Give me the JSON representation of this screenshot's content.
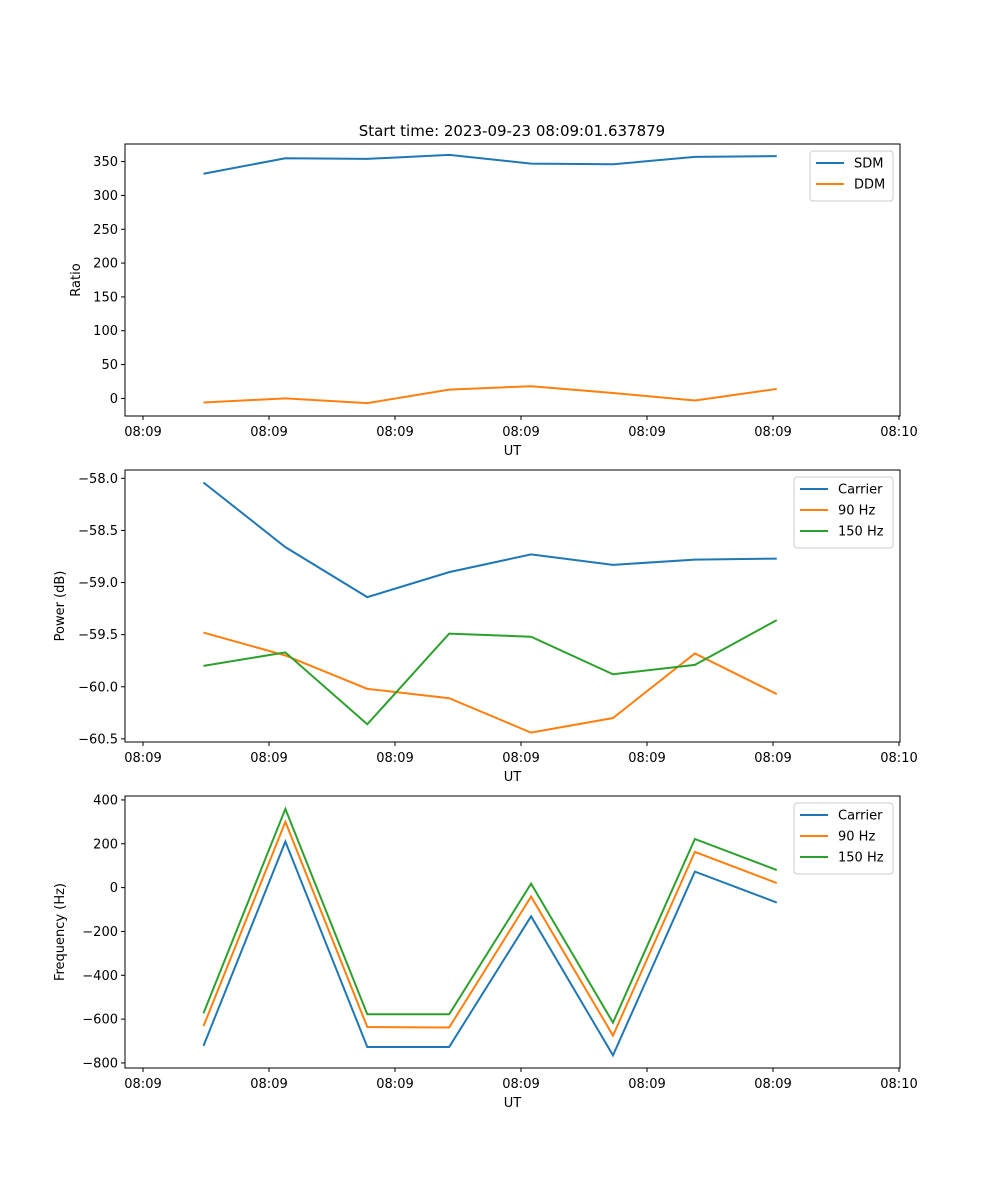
{
  "figure": {
    "title": "Start time: 2023-09-23 08:09:01.637879"
  },
  "chart_data": [
    {
      "type": "line",
      "title": "Start time: 2023-09-23 08:09:01.637879",
      "xlabel": "UT",
      "ylabel": "Ratio",
      "x_domain": [
        0,
        6
      ],
      "x_tick_values": [
        0,
        1,
        2,
        3,
        4,
        5,
        6
      ],
      "x_tick_labels": [
        "08:09",
        "08:09",
        "08:09",
        "08:09",
        "08:09",
        "08:09",
        "08:10"
      ],
      "ylim": [
        -26,
        376
      ],
      "y_ticks": [
        0,
        50,
        100,
        150,
        200,
        250,
        300,
        350
      ],
      "y_tick_labels": [
        "0",
        "50",
        "100",
        "150",
        "200",
        "250",
        "300",
        "350"
      ],
      "legend_position": "top-right",
      "x": [
        0.48,
        1.13,
        1.78,
        2.43,
        3.08,
        3.73,
        4.38,
        5.03
      ],
      "series": [
        {
          "name": "SDM",
          "color": "#1f77b4",
          "values": [
            332,
            355,
            354,
            360,
            347,
            346,
            357,
            358
          ]
        },
        {
          "name": "DDM",
          "color": "#ff7f0e",
          "values": [
            -6,
            0,
            -7,
            13,
            18,
            8,
            -3,
            14
          ]
        }
      ]
    },
    {
      "type": "line",
      "title": "",
      "xlabel": "UT",
      "ylabel": "Power (dB)",
      "x_domain": [
        0,
        6
      ],
      "x_tick_values": [
        0,
        1,
        2,
        3,
        4,
        5,
        6
      ],
      "x_tick_labels": [
        "08:09",
        "08:09",
        "08:09",
        "08:09",
        "08:09",
        "08:09",
        "08:10"
      ],
      "ylim": [
        -60.53,
        -57.92
      ],
      "y_ticks": [
        -60.5,
        -60.0,
        -59.5,
        -59.0,
        -58.5,
        -58.0
      ],
      "y_tick_labels": [
        "−60.5",
        "−60.0",
        "−59.5",
        "−59.0",
        "−58.5",
        "−58.0"
      ],
      "legend_position": "top-right",
      "x": [
        0.48,
        1.13,
        1.78,
        2.43,
        3.08,
        3.73,
        4.38,
        5.03
      ],
      "series": [
        {
          "name": "Carrier",
          "color": "#1f77b4",
          "values": [
            -58.04,
            -58.66,
            -59.14,
            -58.9,
            -58.73,
            -58.83,
            -58.78,
            -58.77
          ]
        },
        {
          "name": "90 Hz",
          "color": "#ff7f0e",
          "values": [
            -59.48,
            -59.7,
            -60.02,
            -60.11,
            -60.44,
            -60.3,
            -59.68,
            -60.07
          ]
        },
        {
          "name": "150 Hz",
          "color": "#2ca02c",
          "values": [
            -59.8,
            -59.67,
            -60.36,
            -59.49,
            -59.52,
            -59.88,
            -59.79,
            -59.36
          ]
        }
      ]
    },
    {
      "type": "line",
      "title": "",
      "xlabel": "UT",
      "ylabel": "Frequency (Hz)",
      "x_domain": [
        0,
        6
      ],
      "x_tick_values": [
        0,
        1,
        2,
        3,
        4,
        5,
        6
      ],
      "x_tick_labels": [
        "08:09",
        "08:09",
        "08:09",
        "08:09",
        "08:09",
        "08:09",
        "08:10"
      ],
      "ylim": [
        -823,
        418
      ],
      "y_ticks": [
        -800,
        -600,
        -400,
        -200,
        0,
        200,
        400
      ],
      "y_tick_labels": [
        "−800",
        "−600",
        "−400",
        "−200",
        "0",
        "200",
        "400"
      ],
      "legend_position": "top-right",
      "x": [
        0.48,
        1.13,
        1.78,
        2.43,
        3.08,
        3.73,
        4.38,
        5.03
      ],
      "series": [
        {
          "name": "Carrier",
          "color": "#1f77b4",
          "values": [
            -722,
            210,
            -727,
            -727,
            -131,
            -765,
            73,
            -68
          ]
        },
        {
          "name": "90 Hz",
          "color": "#ff7f0e",
          "values": [
            -632,
            300,
            -636,
            -638,
            -41,
            -675,
            163,
            21
          ]
        },
        {
          "name": "150 Hz",
          "color": "#2ca02c",
          "values": [
            -573,
            359,
            -578,
            -578,
            18,
            -616,
            222,
            80
          ]
        }
      ]
    }
  ]
}
